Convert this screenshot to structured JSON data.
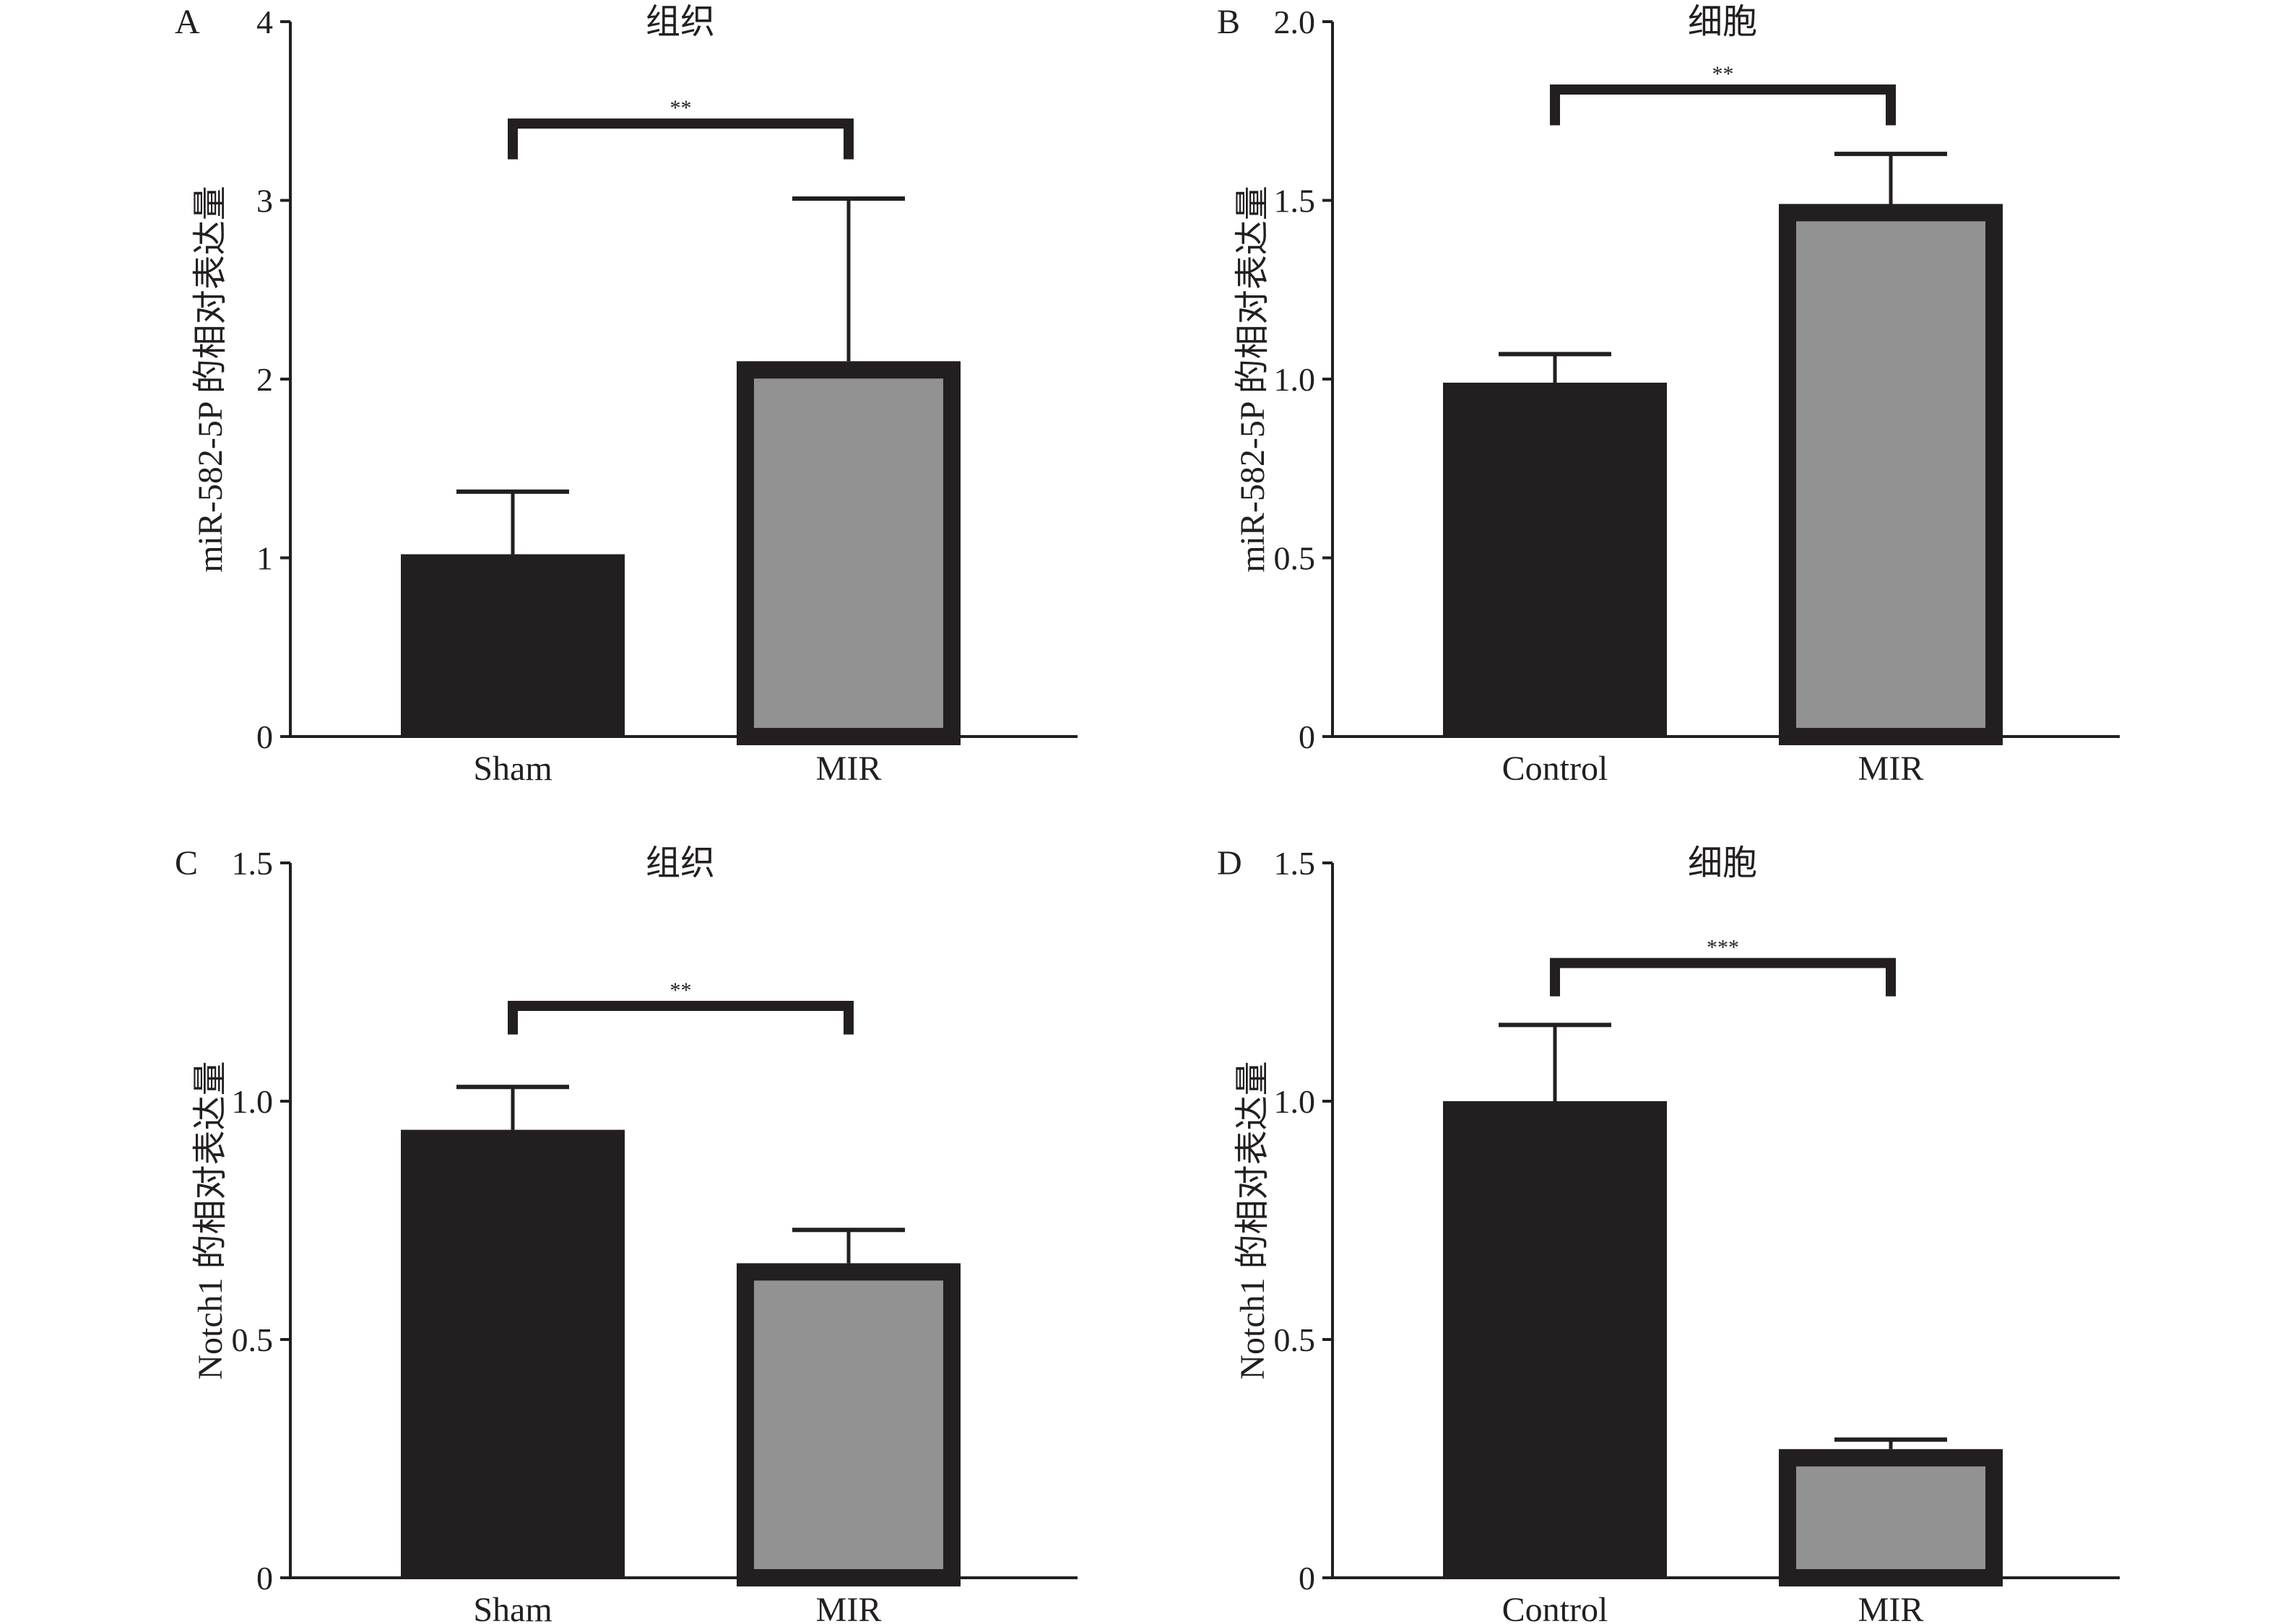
{
  "colors": {
    "control_bar": "#231f20",
    "treatment_bar": "#939292",
    "axis": "#231f20"
  },
  "chart_data": [
    {
      "panel": "A",
      "type": "bar",
      "title": "组织",
      "ylabel": "miR-582-5P 的相对表达量",
      "xlabel": "",
      "categories": [
        "Sham",
        "MIR"
      ],
      "values": [
        1.02,
        2.1
      ],
      "errors": [
        0.35,
        0.91
      ],
      "ylim": [
        0,
        4
      ],
      "yticks": [
        "0",
        "1",
        "2",
        "3",
        "4"
      ],
      "ytick_values": [
        0,
        1,
        2,
        3,
        4
      ],
      "significance": {
        "label": "**",
        "level": 3.43,
        "drop": 3.23
      },
      "grid": false
    },
    {
      "panel": "B",
      "type": "bar",
      "title": "细胞",
      "ylabel": "miR-582-5P 的相对表达量",
      "xlabel": "",
      "categories": [
        "Control",
        "MIR"
      ],
      "values": [
        0.99,
        1.49
      ],
      "errors": [
        0.08,
        0.14
      ],
      "ylim": [
        0,
        2
      ],
      "yticks": [
        "0",
        "0.5",
        "1.0",
        "1.5",
        "2.0"
      ],
      "ytick_values": [
        0,
        0.5,
        1,
        1.5,
        2
      ],
      "significance": {
        "label": "**",
        "level": 1.81,
        "drop": 1.71
      },
      "grid": false
    },
    {
      "panel": "C",
      "type": "bar",
      "title": "组织",
      "ylabel": "Notch1 的相对表达量",
      "xlabel": "",
      "categories": [
        "Sham",
        "MIR"
      ],
      "values": [
        0.94,
        0.66
      ],
      "errors": [
        0.09,
        0.07
      ],
      "ylim": [
        0,
        1.5
      ],
      "yticks": [
        "0",
        "0.5",
        "1.0",
        "1.5"
      ],
      "ytick_values": [
        0,
        0.5,
        1,
        1.5
      ],
      "significance": {
        "label": "**",
        "level": 1.2,
        "drop": 1.14
      },
      "grid": false
    },
    {
      "panel": "D",
      "type": "bar",
      "title": "细胞",
      "ylabel": "Notch1 的相对表达量",
      "xlabel": "",
      "categories": [
        "Control",
        "MIR"
      ],
      "values": [
        1.0,
        0.27
      ],
      "errors": [
        0.16,
        0.02
      ],
      "ylim": [
        0,
        1.5
      ],
      "yticks": [
        "0",
        "0.5",
        "1.0",
        "1.5"
      ],
      "ytick_values": [
        0,
        0.5,
        1,
        1.5
      ],
      "significance": {
        "label": "***",
        "level": 1.29,
        "drop": 1.22
      },
      "grid": false
    }
  ]
}
